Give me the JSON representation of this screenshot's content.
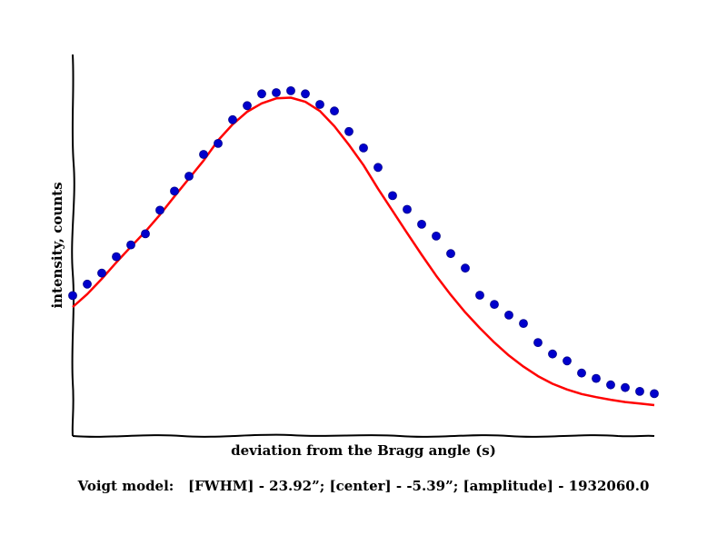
{
  "chart_data": {
    "type": "scatter",
    "xlabel": "deviation from the Bragg angle (s)",
    "ylabel": "intensity, counts",
    "caption": "Voigt model:   [FWHM] - 23.92”; [center] - -5.39”; [amplitude] - 1932060.0",
    "xlim": [
      -100,
      100
    ],
    "ylim": [
      0,
      1
    ],
    "ticks_shown": false,
    "grid": false,
    "series": [
      {
        "kind": "points",
        "color": "#0000cc",
        "x": [
          -100,
          -95,
          -90,
          -85,
          -80,
          -75,
          -70,
          -65,
          -60,
          -55,
          -50,
          -45,
          -40,
          -35,
          -30,
          -25,
          -20,
          -15,
          -10,
          -5,
          0,
          5,
          10,
          15,
          20,
          25,
          30,
          35,
          40,
          45,
          50,
          55,
          60,
          65,
          70,
          75,
          80,
          85,
          90,
          95,
          100
        ],
        "y": [
          0.368,
          0.398,
          0.427,
          0.47,
          0.501,
          0.53,
          0.592,
          0.642,
          0.681,
          0.738,
          0.767,
          0.829,
          0.866,
          0.897,
          0.9,
          0.905,
          0.897,
          0.869,
          0.852,
          0.798,
          0.755,
          0.704,
          0.63,
          0.594,
          0.555,
          0.524,
          0.478,
          0.44,
          0.369,
          0.345,
          0.317,
          0.295,
          0.245,
          0.215,
          0.197,
          0.165,
          0.151,
          0.134,
          0.127,
          0.117,
          0.111
        ]
      },
      {
        "kind": "line",
        "color": "#ff0000",
        "x": [
          -100,
          -95,
          -90,
          -85,
          -80,
          -75,
          -70,
          -65,
          -60,
          -55,
          -50,
          -45,
          -40,
          -35,
          -30,
          -25,
          -20,
          -15,
          -10,
          -5,
          0,
          5,
          10,
          15,
          20,
          25,
          30,
          35,
          40,
          45,
          50,
          55,
          60,
          65,
          70,
          75,
          80,
          85,
          90,
          95,
          100
        ],
        "y": [
          0.338,
          0.372,
          0.412,
          0.455,
          0.496,
          0.536,
          0.58,
          0.628,
          0.675,
          0.722,
          0.775,
          0.817,
          0.85,
          0.872,
          0.885,
          0.887,
          0.876,
          0.852,
          0.812,
          0.763,
          0.71,
          0.648,
          0.59,
          0.532,
          0.475,
          0.42,
          0.37,
          0.324,
          0.283,
          0.245,
          0.211,
          0.182,
          0.157,
          0.137,
          0.122,
          0.11,
          0.102,
          0.095,
          0.089,
          0.085,
          0.081
        ]
      }
    ]
  }
}
